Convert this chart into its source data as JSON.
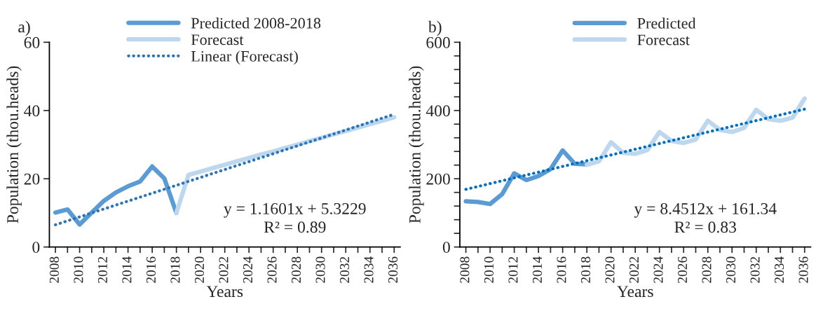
{
  "chart_data": [
    {
      "type": "line",
      "title": "a)",
      "xlabel": "Years",
      "ylabel": "Population (thou.heads)",
      "xlim": [
        2007.5,
        2036.5
      ],
      "ylim": [
        0,
        60
      ],
      "yticks": [
        0,
        20,
        40,
        60
      ],
      "xticks": [
        2008,
        {
          "value": 2009,
          "label": null
        },
        2010,
        {
          "value": 2011,
          "label": null
        },
        2012,
        {
          "value": 2013,
          "label": null
        },
        2014,
        {
          "value": 2015,
          "label": null
        },
        2016,
        {
          "value": 2017,
          "label": null
        },
        2018,
        {
          "value": 2019,
          "label": null
        },
        2020,
        {
          "value": 2021,
          "label": null
        },
        2022,
        {
          "value": 2023,
          "label": null
        },
        2024,
        {
          "value": 2025,
          "label": null
        },
        2026,
        {
          "value": 2027,
          "label": null
        },
        2028,
        {
          "value": 2029,
          "label": null
        },
        2030,
        {
          "value": 2031,
          "label": null
        },
        2032,
        {
          "value": 2033,
          "label": null
        },
        2034,
        {
          "value": 2035,
          "label": null
        },
        2036
      ],
      "legend": "top",
      "grid": false,
      "marker": "none",
      "series": [
        {
          "name": "Predicted 2008-2018",
          "color": "#5b9bd5",
          "line_style": "solid",
          "x": [
            2008,
            2009,
            2010,
            2011,
            2012,
            2013,
            2014,
            2015,
            2016,
            2017,
            2018
          ],
          "values": [
            10.1,
            11.0,
            6.6,
            10.1,
            13.5,
            16.0,
            17.8,
            19.2,
            23.6,
            20.1,
            10.0
          ]
        },
        {
          "name": "Forecast",
          "color": "#bdd7ee",
          "line_style": "solid",
          "x": [
            2018,
            2019,
            2020,
            2021,
            2022,
            2023,
            2024,
            2025,
            2026,
            2027,
            2028,
            2029,
            2030,
            2031,
            2032,
            2033,
            2034,
            2035,
            2036
          ],
          "values": [
            10.0,
            21.1,
            22.1,
            23.1,
            24.1,
            25.1,
            26.1,
            27.1,
            28.0,
            29.0,
            30.0,
            31.0,
            32.0,
            33.0,
            34.0,
            35.0,
            36.0,
            37.0,
            38.0
          ]
        },
        {
          "name": "Linear (Forecast)",
          "color": "#2e75b6",
          "line_style": "dotted",
          "x": [
            2008,
            2036
          ],
          "values": [
            6.5,
            38.9
          ]
        }
      ],
      "annotations": [
        "y = 1.1601x + 5.3229",
        "R² = 0.89"
      ]
    },
    {
      "type": "line",
      "title": "b)",
      "xlabel": "Years",
      "ylabel": "Population (thou.heads)",
      "xlim": [
        2007.5,
        2036.5
      ],
      "ylim": [
        0,
        600
      ],
      "yticks": [
        0,
        {
          "value": 40,
          "label": null
        },
        {
          "value": 80,
          "label": null
        },
        {
          "value": 120,
          "label": null
        },
        {
          "value": 160,
          "label": null
        },
        200,
        {
          "value": 240,
          "label": null
        },
        {
          "value": 280,
          "label": null
        },
        {
          "value": 320,
          "label": null
        },
        {
          "value": 360,
          "label": null
        },
        400,
        {
          "value": 440,
          "label": null
        },
        {
          "value": 480,
          "label": null
        },
        {
          "value": 520,
          "label": null
        },
        {
          "value": 560,
          "label": null
        },
        600
      ],
      "xticks": [
        2008,
        {
          "value": 2009,
          "label": null
        },
        2010,
        {
          "value": 2011,
          "label": null
        },
        2012,
        {
          "value": 2013,
          "label": null
        },
        2014,
        {
          "value": 2015,
          "label": null
        },
        2016,
        {
          "value": 2017,
          "label": null
        },
        2018,
        {
          "value": 2019,
          "label": null
        },
        2020,
        {
          "value": 2021,
          "label": null
        },
        2022,
        {
          "value": 2023,
          "label": null
        },
        2024,
        {
          "value": 2025,
          "label": null
        },
        2026,
        {
          "value": 2027,
          "label": null
        },
        2028,
        {
          "value": 2029,
          "label": null
        },
        2030,
        {
          "value": 2031,
          "label": null
        },
        2032,
        {
          "value": 2033,
          "label": null
        },
        2034,
        {
          "value": 2035,
          "label": null
        },
        2036
      ],
      "legend": "top",
      "grid": false,
      "marker": "none",
      "series": [
        {
          "name": "Predicted",
          "color": "#5b9bd5",
          "line_style": "solid",
          "x": [
            2008,
            2009,
            2010,
            2011,
            2012,
            2013,
            2014,
            2015,
            2016,
            2017,
            2018
          ],
          "values": [
            134,
            132,
            126,
            155,
            216,
            196,
            208,
            228,
            283,
            244,
            242
          ]
        },
        {
          "name": "Forecast",
          "color": "#bdd7ee",
          "line_style": "solid",
          "x": [
            2018,
            2019,
            2020,
            2021,
            2022,
            2023,
            2024,
            2025,
            2026,
            2027,
            2028,
            2029,
            2030,
            2031,
            2032,
            2033,
            2034,
            2035,
            2036
          ],
          "values": [
            241,
            251,
            307,
            276,
            273,
            284,
            337,
            311,
            305,
            315,
            370,
            343,
            337,
            349,
            402,
            375,
            370,
            379,
            435
          ]
        },
        {
          "color": "#0070c0",
          "line_style": "dotted",
          "x": [
            2008,
            2036
          ],
          "values": [
            169,
            404
          ]
        }
      ],
      "annotations": [
        "y = 8.4512x + 161.34",
        "R² = 0.83"
      ]
    }
  ]
}
